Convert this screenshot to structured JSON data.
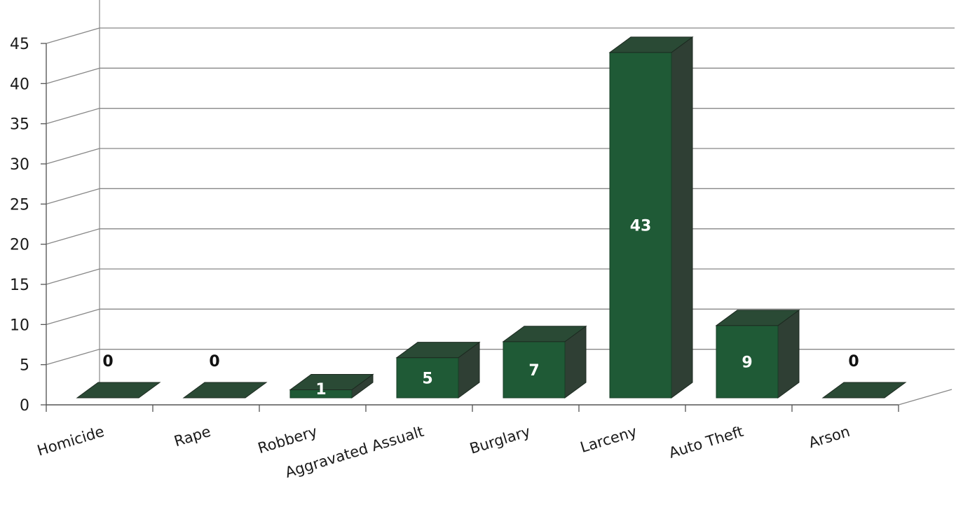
{
  "chart_data": {
    "type": "bar",
    "title": "",
    "xlabel": "",
    "ylabel": "",
    "categories": [
      "Homicide",
      "Rape",
      "Robbery",
      "Aggravated Assualt",
      "Burglary",
      "Larceny",
      "Auto Theft",
      "Arson"
    ],
    "values": [
      0,
      0,
      1,
      5,
      7,
      43,
      9,
      0
    ],
    "ylim": [
      0,
      45
    ],
    "yticks": [
      0,
      5,
      10,
      15,
      20,
      25,
      30,
      35,
      40,
      45
    ],
    "grid": true,
    "three_d": true,
    "legend": "none",
    "colors": {
      "bar_front": "#1f5a36",
      "bar_top": "#2a4a35",
      "bar_side": "#2f3f34",
      "label_inside": "#ffffff",
      "label_outside": "#111111",
      "grid": "#888888"
    }
  }
}
